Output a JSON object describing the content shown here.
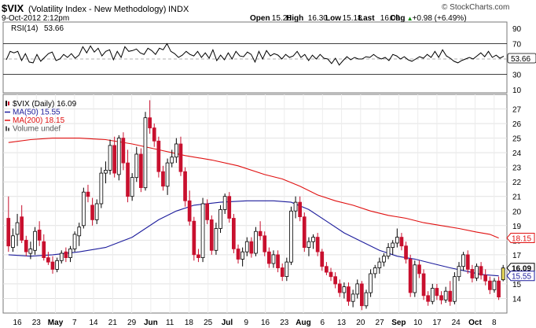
{
  "header": {
    "symbol": "$VIX",
    "name": "(Volatility Index - New Methodology)",
    "exchange": "INDX",
    "watermark": "© StockCharts.com",
    "datetime": "9-Oct-2012 2:12pm",
    "quote": [
      {
        "label": "Open",
        "value": "15.28"
      },
      {
        "label": "High",
        "value": "16.30"
      },
      {
        "label": "Low",
        "value": "15.18"
      },
      {
        "label": "Last",
        "value": "16.09"
      },
      {
        "label": "Chg",
        "value": "+0.98 (+6.49%)",
        "arrow": "▲"
      }
    ]
  },
  "chart_data": {
    "type": "candlestick",
    "rsi_panel": {
      "label": "RSI(14)",
      "value": "53.66",
      "ticks": [
        90,
        70,
        50,
        30,
        10
      ],
      "guides": [
        70,
        30
      ],
      "ylim": [
        10,
        90
      ],
      "values": [
        49,
        60,
        58,
        60,
        48,
        57,
        46,
        45,
        56,
        47,
        52,
        57,
        59,
        48,
        50,
        56,
        52,
        57,
        51,
        55,
        66,
        58,
        67,
        59,
        64,
        54,
        60,
        62,
        49,
        60,
        52,
        66,
        60,
        61,
        63,
        58,
        56,
        64,
        61,
        56,
        64,
        62,
        70,
        60,
        57,
        52,
        55,
        60,
        56,
        54,
        60,
        52,
        58,
        51,
        62,
        48,
        55,
        49,
        58,
        50,
        60,
        54,
        53,
        59,
        56,
        46,
        60,
        50,
        61,
        54,
        57,
        55,
        50,
        56,
        52,
        54,
        60,
        52,
        56,
        48,
        55,
        50,
        56,
        51,
        50,
        44,
        51,
        42,
        48,
        53,
        49,
        52,
        50,
        50,
        53,
        52,
        56,
        52,
        50,
        52,
        48,
        56,
        54,
        50,
        53,
        49,
        47,
        50,
        53,
        51,
        56,
        52,
        60,
        52,
        62,
        54,
        51,
        47,
        45,
        48,
        50,
        52,
        50,
        54,
        58,
        53,
        60,
        52,
        55,
        51,
        53.66
      ]
    },
    "price_panel": {
      "legend": [
        {
          "label": "$VIX (Daily) 16.09",
          "color": "#000000"
        },
        {
          "label": "MA(50) 15.55",
          "color": "#1c1c9c"
        },
        {
          "label": "MA(200) 18.15",
          "color": "#e01010"
        },
        {
          "label": "Volume undef",
          "color": "#555555"
        }
      ],
      "ylim": [
        13,
        28
      ],
      "y_ticks": [
        14,
        15,
        16,
        17,
        18,
        19,
        20,
        21,
        22,
        23,
        24,
        25,
        26,
        27
      ],
      "last_labels": [
        {
          "value": 18.15,
          "text": "18.15",
          "color": "#e01010"
        },
        {
          "value": 16.09,
          "text": "16.09",
          "color": "#000000"
        },
        {
          "value": 15.55,
          "text": "15.55",
          "color": "#1c1c9c"
        }
      ],
      "x_labels": [
        "16",
        "23",
        "May",
        "7",
        "14",
        "21",
        "29",
        "Jun",
        "11",
        "18",
        "25",
        "Jul",
        "9",
        "16",
        "23",
        "Aug",
        "6",
        "13",
        "20",
        "27",
        "Sep",
        "10",
        "17",
        "24",
        "Oct",
        "8"
      ],
      "x_bold": [
        "May",
        "Jun",
        "Jul",
        "Aug",
        "Sep",
        "Oct"
      ],
      "candles": [
        {
          "o": 19.5,
          "h": 21.0,
          "l": 17.2,
          "c": 17.6
        },
        {
          "o": 17.5,
          "h": 18.8,
          "l": 17.2,
          "c": 18.3
        },
        {
          "o": 18.4,
          "h": 19.8,
          "l": 17.6,
          "c": 19.2
        },
        {
          "o": 19.6,
          "h": 20.4,
          "l": 17.8,
          "c": 18.0
        },
        {
          "o": 18.0,
          "h": 18.3,
          "l": 16.9,
          "c": 17.2
        },
        {
          "o": 17.1,
          "h": 17.9,
          "l": 16.7,
          "c": 17.4
        },
        {
          "o": 17.3,
          "h": 18.9,
          "l": 17.0,
          "c": 18.6
        },
        {
          "o": 18.7,
          "h": 19.3,
          "l": 17.6,
          "c": 18.0
        },
        {
          "o": 17.9,
          "h": 18.4,
          "l": 16.6,
          "c": 16.8
        },
        {
          "o": 16.8,
          "h": 17.2,
          "l": 16.3,
          "c": 16.5
        },
        {
          "o": 16.5,
          "h": 16.9,
          "l": 15.7,
          "c": 16.0
        },
        {
          "o": 16.0,
          "h": 16.8,
          "l": 15.8,
          "c": 16.6
        },
        {
          "o": 16.6,
          "h": 17.3,
          "l": 16.4,
          "c": 17.1
        },
        {
          "o": 17.2,
          "h": 17.5,
          "l": 16.5,
          "c": 16.8
        },
        {
          "o": 16.8,
          "h": 17.6,
          "l": 16.5,
          "c": 17.4
        },
        {
          "o": 17.4,
          "h": 18.6,
          "l": 17.2,
          "c": 18.4
        },
        {
          "o": 18.3,
          "h": 19.2,
          "l": 17.6,
          "c": 18.9
        },
        {
          "o": 19.0,
          "h": 21.6,
          "l": 18.8,
          "c": 21.3
        },
        {
          "o": 21.3,
          "h": 21.8,
          "l": 20.6,
          "c": 21.0
        },
        {
          "o": 20.4,
          "h": 20.9,
          "l": 19.0,
          "c": 19.4
        },
        {
          "o": 19.4,
          "h": 20.8,
          "l": 19.1,
          "c": 20.5
        },
        {
          "o": 20.5,
          "h": 23.0,
          "l": 20.2,
          "c": 22.6
        },
        {
          "o": 22.6,
          "h": 23.4,
          "l": 21.9,
          "c": 22.8
        },
        {
          "o": 22.8,
          "h": 24.9,
          "l": 22.5,
          "c": 24.5
        },
        {
          "o": 24.5,
          "h": 25.1,
          "l": 22.3,
          "c": 22.6
        },
        {
          "o": 22.5,
          "h": 25.2,
          "l": 22.1,
          "c": 25.0
        },
        {
          "o": 25.0,
          "h": 25.4,
          "l": 22.8,
          "c": 23.3
        },
        {
          "o": 23.3,
          "h": 24.2,
          "l": 20.6,
          "c": 21.0
        },
        {
          "o": 21.0,
          "h": 22.6,
          "l": 20.7,
          "c": 22.3
        },
        {
          "o": 22.3,
          "h": 24.4,
          "l": 22.0,
          "c": 23.9
        },
        {
          "o": 23.9,
          "h": 24.3,
          "l": 21.3,
          "c": 21.6
        },
        {
          "o": 21.6,
          "h": 26.8,
          "l": 21.4,
          "c": 26.4
        },
        {
          "o": 26.4,
          "h": 27.6,
          "l": 25.3,
          "c": 25.7
        },
        {
          "o": 25.7,
          "h": 26.0,
          "l": 24.4,
          "c": 24.8
        },
        {
          "o": 24.8,
          "h": 25.1,
          "l": 22.3,
          "c": 22.7
        },
        {
          "o": 22.7,
          "h": 23.1,
          "l": 21.4,
          "c": 21.7
        },
        {
          "o": 21.7,
          "h": 23.6,
          "l": 21.1,
          "c": 23.3
        },
        {
          "o": 23.3,
          "h": 24.2,
          "l": 23.0,
          "c": 23.7
        },
        {
          "o": 23.7,
          "h": 25.0,
          "l": 23.3,
          "c": 24.6
        },
        {
          "o": 24.6,
          "h": 25.1,
          "l": 22.4,
          "c": 22.7
        },
        {
          "o": 22.7,
          "h": 23.0,
          "l": 20.3,
          "c": 20.7
        },
        {
          "o": 20.7,
          "h": 21.4,
          "l": 19.0,
          "c": 19.3
        },
        {
          "o": 19.3,
          "h": 19.6,
          "l": 16.6,
          "c": 17.0
        },
        {
          "o": 17.0,
          "h": 17.4,
          "l": 16.5,
          "c": 16.8
        },
        {
          "o": 16.8,
          "h": 20.9,
          "l": 16.5,
          "c": 20.5
        },
        {
          "o": 20.5,
          "h": 20.8,
          "l": 19.1,
          "c": 19.4
        },
        {
          "o": 19.4,
          "h": 19.7,
          "l": 17.0,
          "c": 17.3
        },
        {
          "o": 17.3,
          "h": 19.2,
          "l": 17.0,
          "c": 18.8
        },
        {
          "o": 18.8,
          "h": 20.4,
          "l": 18.5,
          "c": 20.1
        },
        {
          "o": 20.1,
          "h": 21.2,
          "l": 19.8,
          "c": 21.0
        },
        {
          "o": 21.0,
          "h": 21.3,
          "l": 19.2,
          "c": 19.5
        },
        {
          "o": 19.5,
          "h": 19.8,
          "l": 17.1,
          "c": 17.4
        },
        {
          "o": 17.4,
          "h": 17.7,
          "l": 16.4,
          "c": 16.7
        },
        {
          "o": 16.7,
          "h": 17.5,
          "l": 16.2,
          "c": 17.2
        },
        {
          "o": 17.2,
          "h": 18.2,
          "l": 16.9,
          "c": 17.9
        },
        {
          "o": 17.9,
          "h": 18.2,
          "l": 16.8,
          "c": 17.1
        },
        {
          "o": 17.1,
          "h": 18.9,
          "l": 16.9,
          "c": 18.6
        },
        {
          "o": 18.6,
          "h": 19.3,
          "l": 18.0,
          "c": 18.3
        },
        {
          "o": 18.3,
          "h": 18.6,
          "l": 16.9,
          "c": 17.2
        },
        {
          "o": 17.2,
          "h": 17.5,
          "l": 16.1,
          "c": 16.4
        },
        {
          "o": 16.4,
          "h": 17.3,
          "l": 16.1,
          "c": 17.0
        },
        {
          "o": 17.0,
          "h": 17.3,
          "l": 15.8,
          "c": 16.1
        },
        {
          "o": 16.1,
          "h": 16.4,
          "l": 15.2,
          "c": 15.5
        },
        {
          "o": 15.5,
          "h": 16.8,
          "l": 15.2,
          "c": 16.5
        },
        {
          "o": 16.5,
          "h": 20.3,
          "l": 16.3,
          "c": 20.0
        },
        {
          "o": 20.0,
          "h": 21.0,
          "l": 19.5,
          "c": 20.6
        },
        {
          "o": 20.6,
          "h": 21.0,
          "l": 19.3,
          "c": 19.6
        },
        {
          "o": 19.6,
          "h": 19.9,
          "l": 17.2,
          "c": 17.5
        },
        {
          "o": 17.5,
          "h": 18.2,
          "l": 16.9,
          "c": 17.9
        },
        {
          "o": 17.9,
          "h": 18.4,
          "l": 17.4,
          "c": 18.2
        },
        {
          "o": 18.2,
          "h": 18.5,
          "l": 16.9,
          "c": 17.2
        },
        {
          "o": 17.2,
          "h": 17.4,
          "l": 15.9,
          "c": 16.2
        },
        {
          "o": 16.2,
          "h": 16.5,
          "l": 15.6,
          "c": 15.8
        },
        {
          "o": 15.8,
          "h": 16.1,
          "l": 15.2,
          "c": 15.5
        },
        {
          "o": 15.5,
          "h": 15.8,
          "l": 14.7,
          "c": 15.0
        },
        {
          "o": 15.0,
          "h": 15.3,
          "l": 14.1,
          "c": 14.4
        },
        {
          "o": 14.4,
          "h": 15.1,
          "l": 14.0,
          "c": 14.8
        },
        {
          "o": 14.8,
          "h": 15.1,
          "l": 13.5,
          "c": 13.8
        },
        {
          "o": 13.8,
          "h": 14.6,
          "l": 13.4,
          "c": 14.3
        },
        {
          "o": 14.3,
          "h": 15.3,
          "l": 14.0,
          "c": 15.0
        },
        {
          "o": 15.0,
          "h": 15.2,
          "l": 13.2,
          "c": 13.5
        },
        {
          "o": 13.5,
          "h": 14.6,
          "l": 13.3,
          "c": 14.4
        },
        {
          "o": 14.4,
          "h": 16.0,
          "l": 14.1,
          "c": 15.7
        },
        {
          "o": 15.7,
          "h": 16.3,
          "l": 15.4,
          "c": 16.1
        },
        {
          "o": 16.1,
          "h": 16.8,
          "l": 15.7,
          "c": 16.5
        },
        {
          "o": 16.5,
          "h": 17.1,
          "l": 16.2,
          "c": 16.9
        },
        {
          "o": 16.9,
          "h": 17.8,
          "l": 16.7,
          "c": 17.5
        },
        {
          "o": 17.5,
          "h": 18.0,
          "l": 17.0,
          "c": 17.8
        },
        {
          "o": 17.8,
          "h": 18.8,
          "l": 17.5,
          "c": 18.2
        },
        {
          "o": 18.2,
          "h": 18.5,
          "l": 17.3,
          "c": 17.6
        },
        {
          "o": 17.6,
          "h": 17.9,
          "l": 16.4,
          "c": 16.7
        },
        {
          "o": 16.7,
          "h": 17.0,
          "l": 14.1,
          "c": 14.4
        },
        {
          "o": 14.4,
          "h": 16.6,
          "l": 14.1,
          "c": 16.3
        },
        {
          "o": 16.3,
          "h": 16.6,
          "l": 15.4,
          "c": 15.7
        },
        {
          "o": 15.7,
          "h": 16.0,
          "l": 13.9,
          "c": 14.2
        },
        {
          "o": 14.2,
          "h": 14.5,
          "l": 13.5,
          "c": 13.8
        },
        {
          "o": 13.8,
          "h": 15.0,
          "l": 13.6,
          "c": 14.7
        },
        {
          "o": 14.7,
          "h": 15.0,
          "l": 13.9,
          "c": 14.2
        },
        {
          "o": 14.2,
          "h": 14.5,
          "l": 13.6,
          "c": 13.9
        },
        {
          "o": 13.9,
          "h": 14.8,
          "l": 13.7,
          "c": 14.5
        },
        {
          "o": 14.5,
          "h": 15.2,
          "l": 13.5,
          "c": 13.8
        },
        {
          "o": 13.8,
          "h": 15.8,
          "l": 13.6,
          "c": 15.5
        },
        {
          "o": 15.5,
          "h": 16.5,
          "l": 15.2,
          "c": 16.2
        },
        {
          "o": 16.2,
          "h": 17.2,
          "l": 15.9,
          "c": 17.0
        },
        {
          "o": 17.0,
          "h": 17.3,
          "l": 15.7,
          "c": 16.0
        },
        {
          "o": 16.0,
          "h": 16.3,
          "l": 15.1,
          "c": 15.4
        },
        {
          "o": 15.4,
          "h": 16.4,
          "l": 15.2,
          "c": 16.2
        },
        {
          "o": 16.2,
          "h": 16.5,
          "l": 15.3,
          "c": 15.6
        },
        {
          "o": 15.6,
          "h": 16.0,
          "l": 14.9,
          "c": 15.2
        },
        {
          "o": 15.2,
          "h": 15.5,
          "l": 14.3,
          "c": 14.6
        },
        {
          "o": 14.6,
          "h": 15.4,
          "l": 14.4,
          "c": 15.2
        },
        {
          "o": 15.2,
          "h": 15.5,
          "l": 13.9,
          "c": 14.1
        },
        {
          "o": 15.28,
          "h": 16.3,
          "l": 15.18,
          "c": 16.09
        }
      ],
      "ma50": [
        [
          0,
          17.0
        ],
        [
          5,
          16.9
        ],
        [
          10,
          17.0
        ],
        [
          16,
          17.2
        ],
        [
          22,
          17.5
        ],
        [
          28,
          18.2
        ],
        [
          34,
          19.4
        ],
        [
          38,
          20.0
        ],
        [
          42,
          20.4
        ],
        [
          48,
          20.6
        ],
        [
          54,
          20.7
        ],
        [
          60,
          20.7
        ],
        [
          64,
          20.6
        ],
        [
          68,
          20.1
        ],
        [
          72,
          19.3
        ],
        [
          76,
          18.5
        ],
        [
          80,
          17.9
        ],
        [
          84,
          17.3
        ],
        [
          88,
          16.9
        ],
        [
          92,
          16.7
        ],
        [
          96,
          16.4
        ],
        [
          100,
          16.1
        ],
        [
          104,
          15.85
        ],
        [
          107,
          15.65
        ],
        [
          111,
          15.55
        ]
      ],
      "ma200": [
        [
          0,
          24.7
        ],
        [
          5,
          24.9
        ],
        [
          10,
          25.0
        ],
        [
          16,
          25.0
        ],
        [
          22,
          24.9
        ],
        [
          28,
          24.6
        ],
        [
          34,
          24.2
        ],
        [
          40,
          23.8
        ],
        [
          46,
          23.5
        ],
        [
          52,
          23.1
        ],
        [
          58,
          22.5
        ],
        [
          62,
          22.2
        ],
        [
          66,
          21.7
        ],
        [
          70,
          21.1
        ],
        [
          74,
          20.7
        ],
        [
          78,
          20.4
        ],
        [
          82,
          20.0
        ],
        [
          86,
          19.7
        ],
        [
          90,
          19.5
        ],
        [
          94,
          19.2
        ],
        [
          98,
          19.0
        ],
        [
          102,
          18.8
        ],
        [
          106,
          18.55
        ],
        [
          109,
          18.4
        ],
        [
          111,
          18.15
        ]
      ]
    }
  }
}
